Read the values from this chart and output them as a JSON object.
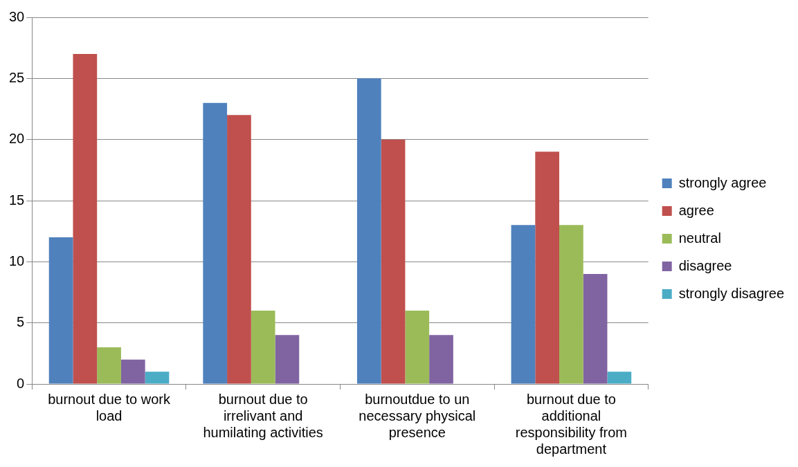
{
  "chart_data": {
    "type": "bar",
    "categories": [
      "burnout due to work load",
      "burnout due to irrelivant and humilating activities",
      "burnoutdue to un necessary physical presence",
      "burnout due to additional responsibility from department"
    ],
    "series": [
      {
        "name": "strongly agree",
        "color": "#4f81bd",
        "values": [
          12,
          23,
          25,
          13
        ]
      },
      {
        "name": "agree",
        "color": "#c0504d",
        "values": [
          27,
          22,
          20,
          19
        ]
      },
      {
        "name": "neutral",
        "color": "#9bbb59",
        "values": [
          3,
          6,
          6,
          13
        ]
      },
      {
        "name": "disagree",
        "color": "#8064a2",
        "values": [
          2,
          4,
          4,
          9
        ]
      },
      {
        "name": "strongly disagree",
        "color": "#4bacc6",
        "values": [
          1,
          0,
          0,
          1
        ]
      }
    ],
    "ylim": [
      0,
      30
    ],
    "yticks": [
      0,
      5,
      10,
      15,
      20,
      25,
      30
    ],
    "grid": "y",
    "legend": "right"
  }
}
